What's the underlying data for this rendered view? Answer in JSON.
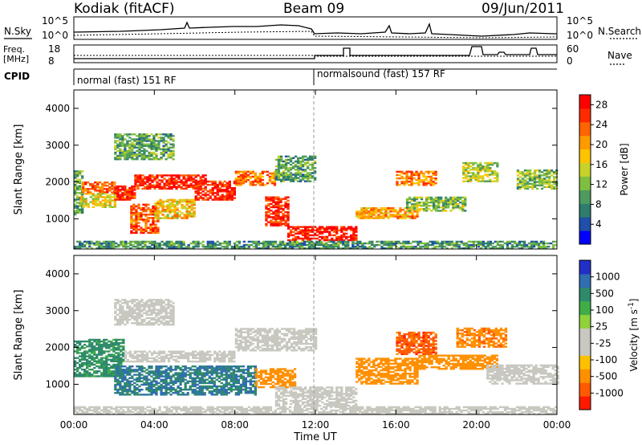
{
  "header": {
    "station": "Kodiak (fitACF)",
    "beam": "Beam 09",
    "date": "09/Jun/2011"
  },
  "strip_labels": {
    "nsky": "N.Sky",
    "nsearch": "N.Search",
    "freq_line1": "Freq.",
    "freq_line2": "[MHz]",
    "nave": "Nave",
    "cpid": "CPID"
  },
  "strip_ticks": {
    "noise_left": [
      "10^5",
      "10^0"
    ],
    "noise_right": [
      "10^5",
      "10^0"
    ],
    "freq_left": [
      "18",
      "8"
    ],
    "nave_right": [
      "60",
      "0"
    ]
  },
  "cpid_segments": [
    {
      "label": "normal (fast) 151 RF",
      "start_hour": 0
    },
    {
      "label": "normalsound (fast) 157 RF",
      "start_hour": 12
    }
  ],
  "chart_data": [
    {
      "type": "heatmap",
      "panel": "power",
      "ylabel": "Slant Range [km]",
      "y_ticks": [
        "1000",
        "2000",
        "3000",
        "4000"
      ],
      "ylim": [
        180,
        4500
      ],
      "colorbar": {
        "label": "Power [dB]",
        "ticks": [
          "4",
          "8",
          "12",
          "16",
          "20",
          "24",
          "28"
        ],
        "range": [
          0,
          30
        ],
        "colors": [
          "#0000ff",
          "#1f4fa8",
          "#2e7d6d",
          "#4f9a5e",
          "#7fbf3f",
          "#c8d22a",
          "#ffc400",
          "#ff9a00",
          "#ff6400",
          "#ff2a00",
          "#ff0000"
        ]
      },
      "regions": [
        {
          "t0": 0.0,
          "t1": 0.4,
          "r0": 1100,
          "r1": 2300,
          "p": 10
        },
        {
          "t0": 0.4,
          "t1": 2.0,
          "r0": 1700,
          "r1": 2000,
          "p": 24
        },
        {
          "t0": 0.3,
          "t1": 2.0,
          "r0": 1300,
          "r1": 1700,
          "p": 16
        },
        {
          "t0": 2.0,
          "t1": 3.0,
          "r0": 1500,
          "r1": 1900,
          "p": 26
        },
        {
          "t0": 2.8,
          "t1": 4.2,
          "r0": 600,
          "r1": 1400,
          "p": 24
        },
        {
          "t0": 3.0,
          "t1": 6.5,
          "r0": 1800,
          "r1": 2200,
          "p": 27
        },
        {
          "t0": 4.0,
          "t1": 6.0,
          "r0": 1000,
          "r1": 1500,
          "p": 18
        },
        {
          "t0": 6.0,
          "t1": 8.0,
          "r0": 1500,
          "r1": 2000,
          "p": 27
        },
        {
          "t0": 8.0,
          "t1": 10.0,
          "r0": 1900,
          "r1": 2300,
          "p": 22
        },
        {
          "t0": 9.5,
          "t1": 10.6,
          "r0": 800,
          "r1": 1600,
          "p": 27
        },
        {
          "t0": 10.0,
          "t1": 12.0,
          "r0": 2000,
          "r1": 2700,
          "p": 10
        },
        {
          "t0": 10.6,
          "t1": 14.0,
          "r0": 400,
          "r1": 800,
          "p": 28
        },
        {
          "t0": 2.0,
          "t1": 5.0,
          "r0": 2600,
          "r1": 3300,
          "p": 10
        },
        {
          "t0": 14.0,
          "t1": 17.0,
          "r0": 1000,
          "r1": 1300,
          "p": 20
        },
        {
          "t0": 16.0,
          "t1": 18.0,
          "r0": 1900,
          "r1": 2300,
          "p": 22
        },
        {
          "t0": 16.5,
          "t1": 19.5,
          "r0": 1200,
          "r1": 1600,
          "p": 12
        },
        {
          "t0": 19.3,
          "t1": 21.0,
          "r0": 2000,
          "r1": 2500,
          "p": 14
        },
        {
          "t0": 22.0,
          "t1": 24.0,
          "r0": 1800,
          "r1": 2300,
          "p": 12
        },
        {
          "t0": 0.0,
          "t1": 24.0,
          "r0": 180,
          "r1": 400,
          "p": 9
        }
      ]
    },
    {
      "type": "heatmap",
      "panel": "velocity",
      "ylabel": "Slant Range [km]",
      "y_ticks": [
        "1000",
        "2000",
        "3000",
        "4000"
      ],
      "ylim": [
        180,
        4500
      ],
      "colorbar": {
        "label": "Velocity [m s",
        "label_sup": "-1",
        "label_end": "]",
        "ticks": [
          "1000",
          "500",
          "100",
          "25",
          "-25",
          "-100",
          "-500",
          "-1000"
        ],
        "colors": [
          "#2230c8",
          "#2f6eb0",
          "#2f8a6a",
          "#3fae48",
          "#8fd23c",
          "#c8c8c0",
          "#c8c8c0",
          "#ffc000",
          "#ff9000",
          "#ff5a00",
          "#ff1a00"
        ]
      },
      "regions": [
        {
          "t0": 0.0,
          "t1": 2.5,
          "r0": 1200,
          "r1": 2200,
          "v": 150
        },
        {
          "t0": 2.0,
          "t1": 5.0,
          "r0": 2600,
          "r1": 3300,
          "v": 0
        },
        {
          "t0": 2.5,
          "t1": 8.0,
          "r0": 1600,
          "r1": 1900,
          "v": 0
        },
        {
          "t0": 2.0,
          "t1": 9.0,
          "r0": 700,
          "r1": 1500,
          "v": 300
        },
        {
          "t0": 8.0,
          "t1": 12.0,
          "r0": 1900,
          "r1": 2500,
          "v": 0
        },
        {
          "t0": 9.0,
          "t1": 11.0,
          "r0": 900,
          "r1": 1400,
          "v": -200
        },
        {
          "t0": 10.0,
          "t1": 14.0,
          "r0": 400,
          "r1": 900,
          "v": 0
        },
        {
          "t0": 14.0,
          "t1": 17.0,
          "r0": 1000,
          "r1": 1700,
          "v": -300
        },
        {
          "t0": 16.0,
          "t1": 18.0,
          "r0": 1800,
          "r1": 2400,
          "v": -700
        },
        {
          "t0": 17.0,
          "t1": 21.0,
          "r0": 1400,
          "r1": 1800,
          "v": -300
        },
        {
          "t0": 19.0,
          "t1": 21.5,
          "r0": 2000,
          "r1": 2500,
          "v": -400
        },
        {
          "t0": 20.5,
          "t1": 24.0,
          "r0": 1000,
          "r1": 1500,
          "v": 0
        },
        {
          "t0": 0.0,
          "t1": 24.0,
          "r0": 180,
          "r1": 400,
          "v": 0
        }
      ]
    }
  ],
  "x_axis": {
    "label": "Time UT",
    "ticks": [
      "00:00",
      "04:00",
      "08:00",
      "12:00",
      "16:00",
      "20:00",
      "00:00"
    ]
  }
}
